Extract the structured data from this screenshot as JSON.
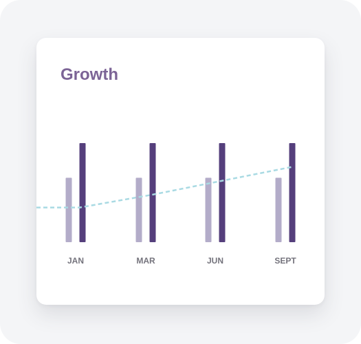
{
  "chart_data": {
    "type": "bar",
    "title": "Growth",
    "categories": [
      "JAN",
      "MAR",
      "JUN",
      "SEPT"
    ],
    "series": [
      {
        "type": "bar",
        "values": [
          65,
          65,
          65,
          65
        ],
        "color": "#b3acc9"
      },
      {
        "type": "bar",
        "values": [
          100,
          100,
          100,
          100
        ],
        "color": "#553f7c"
      },
      {
        "type": "line",
        "style": "dashed",
        "values": [
          35,
          48,
          62,
          76
        ],
        "color": "#a9dae3"
      }
    ],
    "ylim": [
      0,
      100
    ],
    "grid": false
  },
  "colors": {
    "title": "#7c6496",
    "background": "#f4f5f7",
    "card": "#ffffff"
  }
}
